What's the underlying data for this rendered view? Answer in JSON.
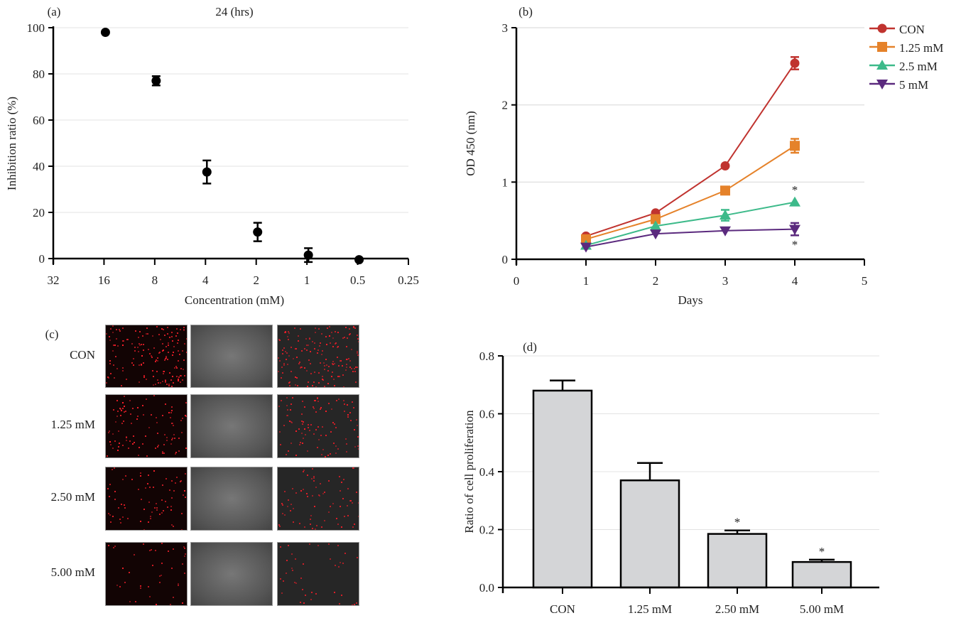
{
  "chart_data": [
    {
      "panel": "(a)",
      "type": "scatter",
      "title": "24 (hrs)",
      "xlabel": "Concentration (mM)",
      "ylabel": "Inhibition ratio (%)",
      "x_ticks": [
        "32",
        "16",
        "8",
        "4",
        "2",
        "1",
        "0.5",
        "0.25"
      ],
      "ylim": [
        0,
        100
      ],
      "y_ticks": [
        "0",
        "20",
        "40",
        "60",
        "80",
        "100"
      ],
      "grid": true,
      "points": [
        {
          "x": "16",
          "y": 98,
          "err": 0.5
        },
        {
          "x": "8",
          "y": 77,
          "err": 2
        },
        {
          "x": "4",
          "y": 37.5,
          "err": 5
        },
        {
          "x": "2",
          "y": 11.5,
          "err": 4
        },
        {
          "x": "1",
          "y": 1.5,
          "err": 3
        },
        {
          "x": "0.5",
          "y": -0.5,
          "err": 0
        }
      ]
    },
    {
      "panel": "(b)",
      "type": "line",
      "xlabel": "Days",
      "ylabel": "OD 450 (nm)",
      "xlim": [
        0,
        5
      ],
      "ylim": [
        0,
        3
      ],
      "x_ticks": [
        "0",
        "1",
        "2",
        "3",
        "4",
        "5"
      ],
      "y_ticks": [
        "0",
        "1",
        "2",
        "3"
      ],
      "grid": true,
      "legend": "top-right",
      "x": [
        1,
        2,
        3,
        4
      ],
      "series": [
        {
          "name": "CON",
          "color": "#c0332f",
          "marker": "circle",
          "values": [
            0.3,
            0.6,
            1.21,
            2.54
          ],
          "err": [
            0.02,
            0.02,
            0.02,
            0.08
          ]
        },
        {
          "name": "1.25 mM",
          "color": "#e5822a",
          "marker": "square",
          "values": [
            0.26,
            0.52,
            0.89,
            1.47
          ],
          "err": [
            0.02,
            0.02,
            0.02,
            0.09
          ]
        },
        {
          "name": "2.5 mM",
          "color": "#3dba8a",
          "marker": "triangle-up",
          "values": [
            0.18,
            0.43,
            0.57,
            0.74
          ],
          "err": [
            0.02,
            0.02,
            0.07,
            0.02
          ]
        },
        {
          "name": "5 mM",
          "color": "#5b2a7e",
          "marker": "triangle-down",
          "values": [
            0.16,
            0.33,
            0.37,
            0.39
          ],
          "err": [
            0.02,
            0.02,
            0.02,
            0.08
          ]
        }
      ],
      "annotations": [
        "*",
        "*"
      ]
    },
    {
      "panel": "(d)",
      "type": "bar",
      "ylabel": "Ratio of cell proliferation",
      "categories": [
        "CON",
        "1.25 mM",
        "2.50 mM",
        "5.00 mM"
      ],
      "values": [
        0.68,
        0.37,
        0.185,
        0.088
      ],
      "err": [
        0.035,
        0.06,
        0.012,
        0.008
      ],
      "significance": [
        "",
        "",
        "*",
        "*"
      ],
      "ylim": [
        0,
        0.8
      ],
      "y_ticks": [
        "0.0",
        "0.2",
        "0.4",
        "0.6",
        "0.8"
      ],
      "grid": true,
      "bar_color": "#d4d5d7"
    }
  ],
  "panel_c": {
    "label": "(c)",
    "rows": [
      "CON",
      "1.25 mM",
      "2.50 mM",
      "5.00 mM"
    ],
    "cell_density": [
      1,
      0.6,
      0.45,
      0.25
    ]
  }
}
